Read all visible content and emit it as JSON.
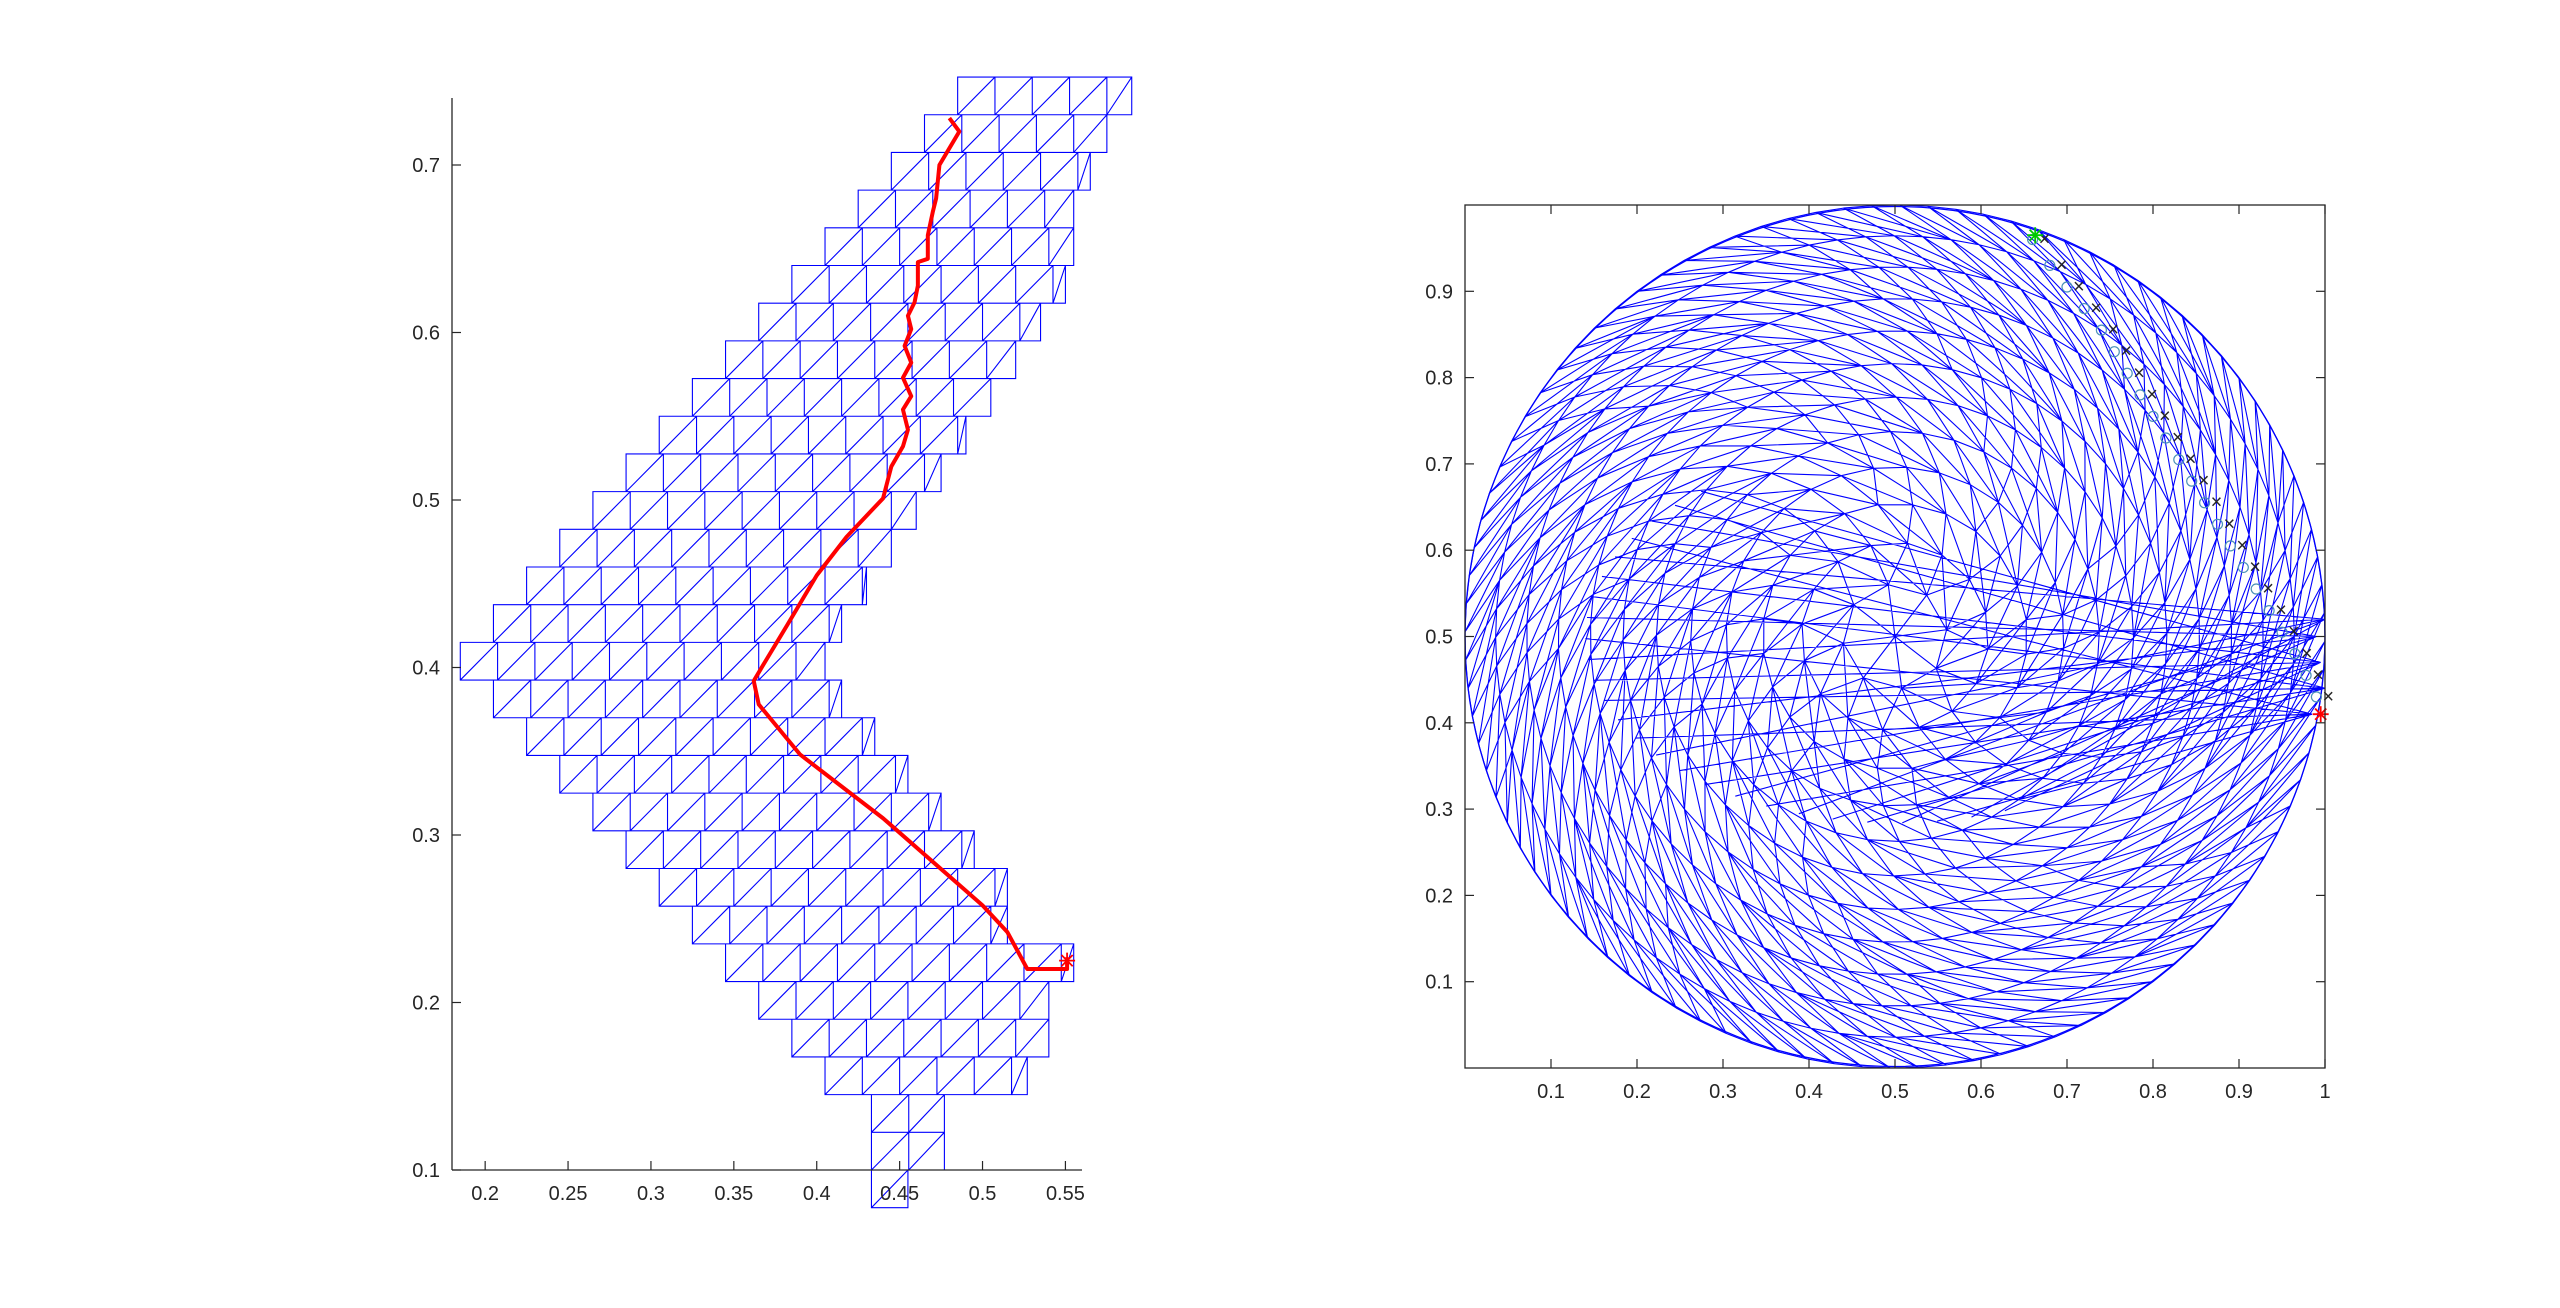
{
  "figure": {
    "background": "#ffffff"
  },
  "colors": {
    "axis": "#262626",
    "mesh": "#0000ff",
    "path": "#ff0000",
    "start": "#00c800",
    "marker_a": "#e07b39",
    "marker_b": "#4a90b8"
  },
  "chart_data": [
    {
      "type": "line",
      "title": "",
      "xlabel": "",
      "ylabel": "",
      "xlim": [
        0.18,
        0.56
      ],
      "ylim": [
        0.1,
        0.74
      ],
      "xticks": [
        0.2,
        0.25,
        0.3,
        0.35,
        0.4,
        0.45,
        0.5,
        0.55
      ],
      "yticks": [
        0.1,
        0.2,
        0.3,
        0.4,
        0.5,
        0.6,
        0.7
      ],
      "grid": false,
      "mesh": {
        "cell_h": 0.0225,
        "rows": [
          {
            "y0": 0.0775,
            "cols": [
              0.433,
              0.455
            ]
          },
          {
            "y0": 0.1,
            "cols": [
              0.433,
              0.477
            ]
          },
          {
            "y0": 0.1225,
            "cols": [
              0.433,
              0.477
            ]
          },
          {
            "y0": 0.145,
            "cols": [
              0.405,
              0.527
            ]
          },
          {
            "y0": 0.1675,
            "cols": [
              0.385,
              0.54
            ]
          },
          {
            "y0": 0.19,
            "cols": [
              0.365,
              0.54
            ]
          },
          {
            "y0": 0.2125,
            "cols": [
              0.345,
              0.555
            ]
          },
          {
            "y0": 0.235,
            "cols": [
              0.325,
              0.515
            ]
          },
          {
            "y0": 0.2575,
            "cols": [
              0.305,
              0.515
            ]
          },
          {
            "y0": 0.28,
            "cols": [
              0.285,
              0.495
            ]
          },
          {
            "y0": 0.3025,
            "cols": [
              0.265,
              0.475
            ]
          },
          {
            "y0": 0.325,
            "cols": [
              0.245,
              0.455
            ]
          },
          {
            "y0": 0.3475,
            "cols": [
              0.225,
              0.435
            ]
          },
          {
            "y0": 0.37,
            "cols": [
              0.205,
              0.415
            ]
          },
          {
            "y0": 0.3925,
            "cols": [
              0.185,
              0.405
            ]
          },
          {
            "y0": 0.415,
            "cols": [
              0.205,
              0.415
            ]
          },
          {
            "y0": 0.4375,
            "cols": [
              0.225,
              0.43
            ]
          },
          {
            "y0": 0.46,
            "cols": [
              0.245,
              0.445
            ]
          },
          {
            "y0": 0.4825,
            "cols": [
              0.265,
              0.46
            ]
          },
          {
            "y0": 0.505,
            "cols": [
              0.285,
              0.475
            ]
          },
          {
            "y0": 0.5275,
            "cols": [
              0.305,
              0.49
            ]
          },
          {
            "y0": 0.55,
            "cols": [
              0.325,
              0.505
            ]
          },
          {
            "y0": 0.5725,
            "cols": [
              0.345,
              0.52
            ]
          },
          {
            "y0": 0.595,
            "cols": [
              0.365,
              0.535
            ]
          },
          {
            "y0": 0.6175,
            "cols": [
              0.385,
              0.55
            ]
          },
          {
            "y0": 0.64,
            "cols": [
              0.405,
              0.555
            ]
          },
          {
            "y0": 0.6625,
            "cols": [
              0.425,
              0.555
            ]
          },
          {
            "y0": 0.685,
            "cols": [
              0.445,
              0.565
            ]
          },
          {
            "y0": 0.7075,
            "cols": [
              0.465,
              0.575
            ]
          },
          {
            "y0": 0.73,
            "cols": [
              0.485,
              0.59
            ]
          }
        ]
      },
      "series": [
        {
          "x": [
            0.551,
            0.551,
            0.527,
            0.515,
            0.5,
            0.44,
            0.39,
            0.365,
            0.362,
            0.368,
            0.382,
            0.4,
            0.418,
            0.44,
            0.445,
            0.452,
            0.455,
            0.452,
            0.457,
            0.452,
            0.457,
            0.453,
            0.457,
            0.455,
            0.459,
            0.461,
            0.461,
            0.467,
            0.467,
            0.47,
            0.472,
            0.474,
            0.486,
            0.48
          ],
          "y": [
            0.227,
            0.22,
            0.22,
            0.242,
            0.258,
            0.31,
            0.348,
            0.378,
            0.392,
            0.402,
            0.425,
            0.455,
            0.478,
            0.501,
            0.52,
            0.532,
            0.542,
            0.554,
            0.562,
            0.573,
            0.582,
            0.592,
            0.602,
            0.61,
            0.618,
            0.628,
            0.642,
            0.644,
            0.658,
            0.672,
            0.68,
            0.7,
            0.72,
            0.728
          ]
        }
      ],
      "markers": [
        {
          "label": "end",
          "x": 0.551,
          "y": 0.225,
          "symbol": "*"
        }
      ]
    },
    {
      "type": "scatter",
      "title": "",
      "xlabel": "",
      "ylabel": "",
      "xlim": [
        0,
        1
      ],
      "ylim": [
        0,
        1
      ],
      "xticks": [
        0.1,
        0.2,
        0.3,
        0.4,
        0.5,
        0.6,
        0.7,
        0.8,
        0.9,
        1
      ],
      "yticks": [
        0.1,
        0.2,
        0.3,
        0.4,
        0.5,
        0.6,
        0.7,
        0.8,
        0.9
      ],
      "grid": false,
      "mesh": {
        "shape": "disk",
        "center": [
          0.5,
          0.5
        ],
        "radius": 0.5
      },
      "series": [
        {
          "x": [
            0.66,
            0.68,
            0.7,
            0.72,
            0.74,
            0.755,
            0.77,
            0.785,
            0.8,
            0.815,
            0.83,
            0.845,
            0.86,
            0.875,
            0.89,
            0.905,
            0.92,
            0.935,
            0.95,
            0.965,
            0.978,
            0.99
          ],
          "y": [
            0.96,
            0.93,
            0.905,
            0.88,
            0.855,
            0.83,
            0.805,
            0.78,
            0.755,
            0.73,
            0.705,
            0.68,
            0.655,
            0.63,
            0.605,
            0.58,
            0.555,
            0.53,
            0.505,
            0.48,
            0.455,
            0.43
          ]
        }
      ],
      "markers": [
        {
          "label": "start",
          "x": 0.663,
          "y": 0.965,
          "symbol": "*"
        },
        {
          "label": "end",
          "x": 0.995,
          "y": 0.41,
          "symbol": "*"
        }
      ]
    }
  ]
}
